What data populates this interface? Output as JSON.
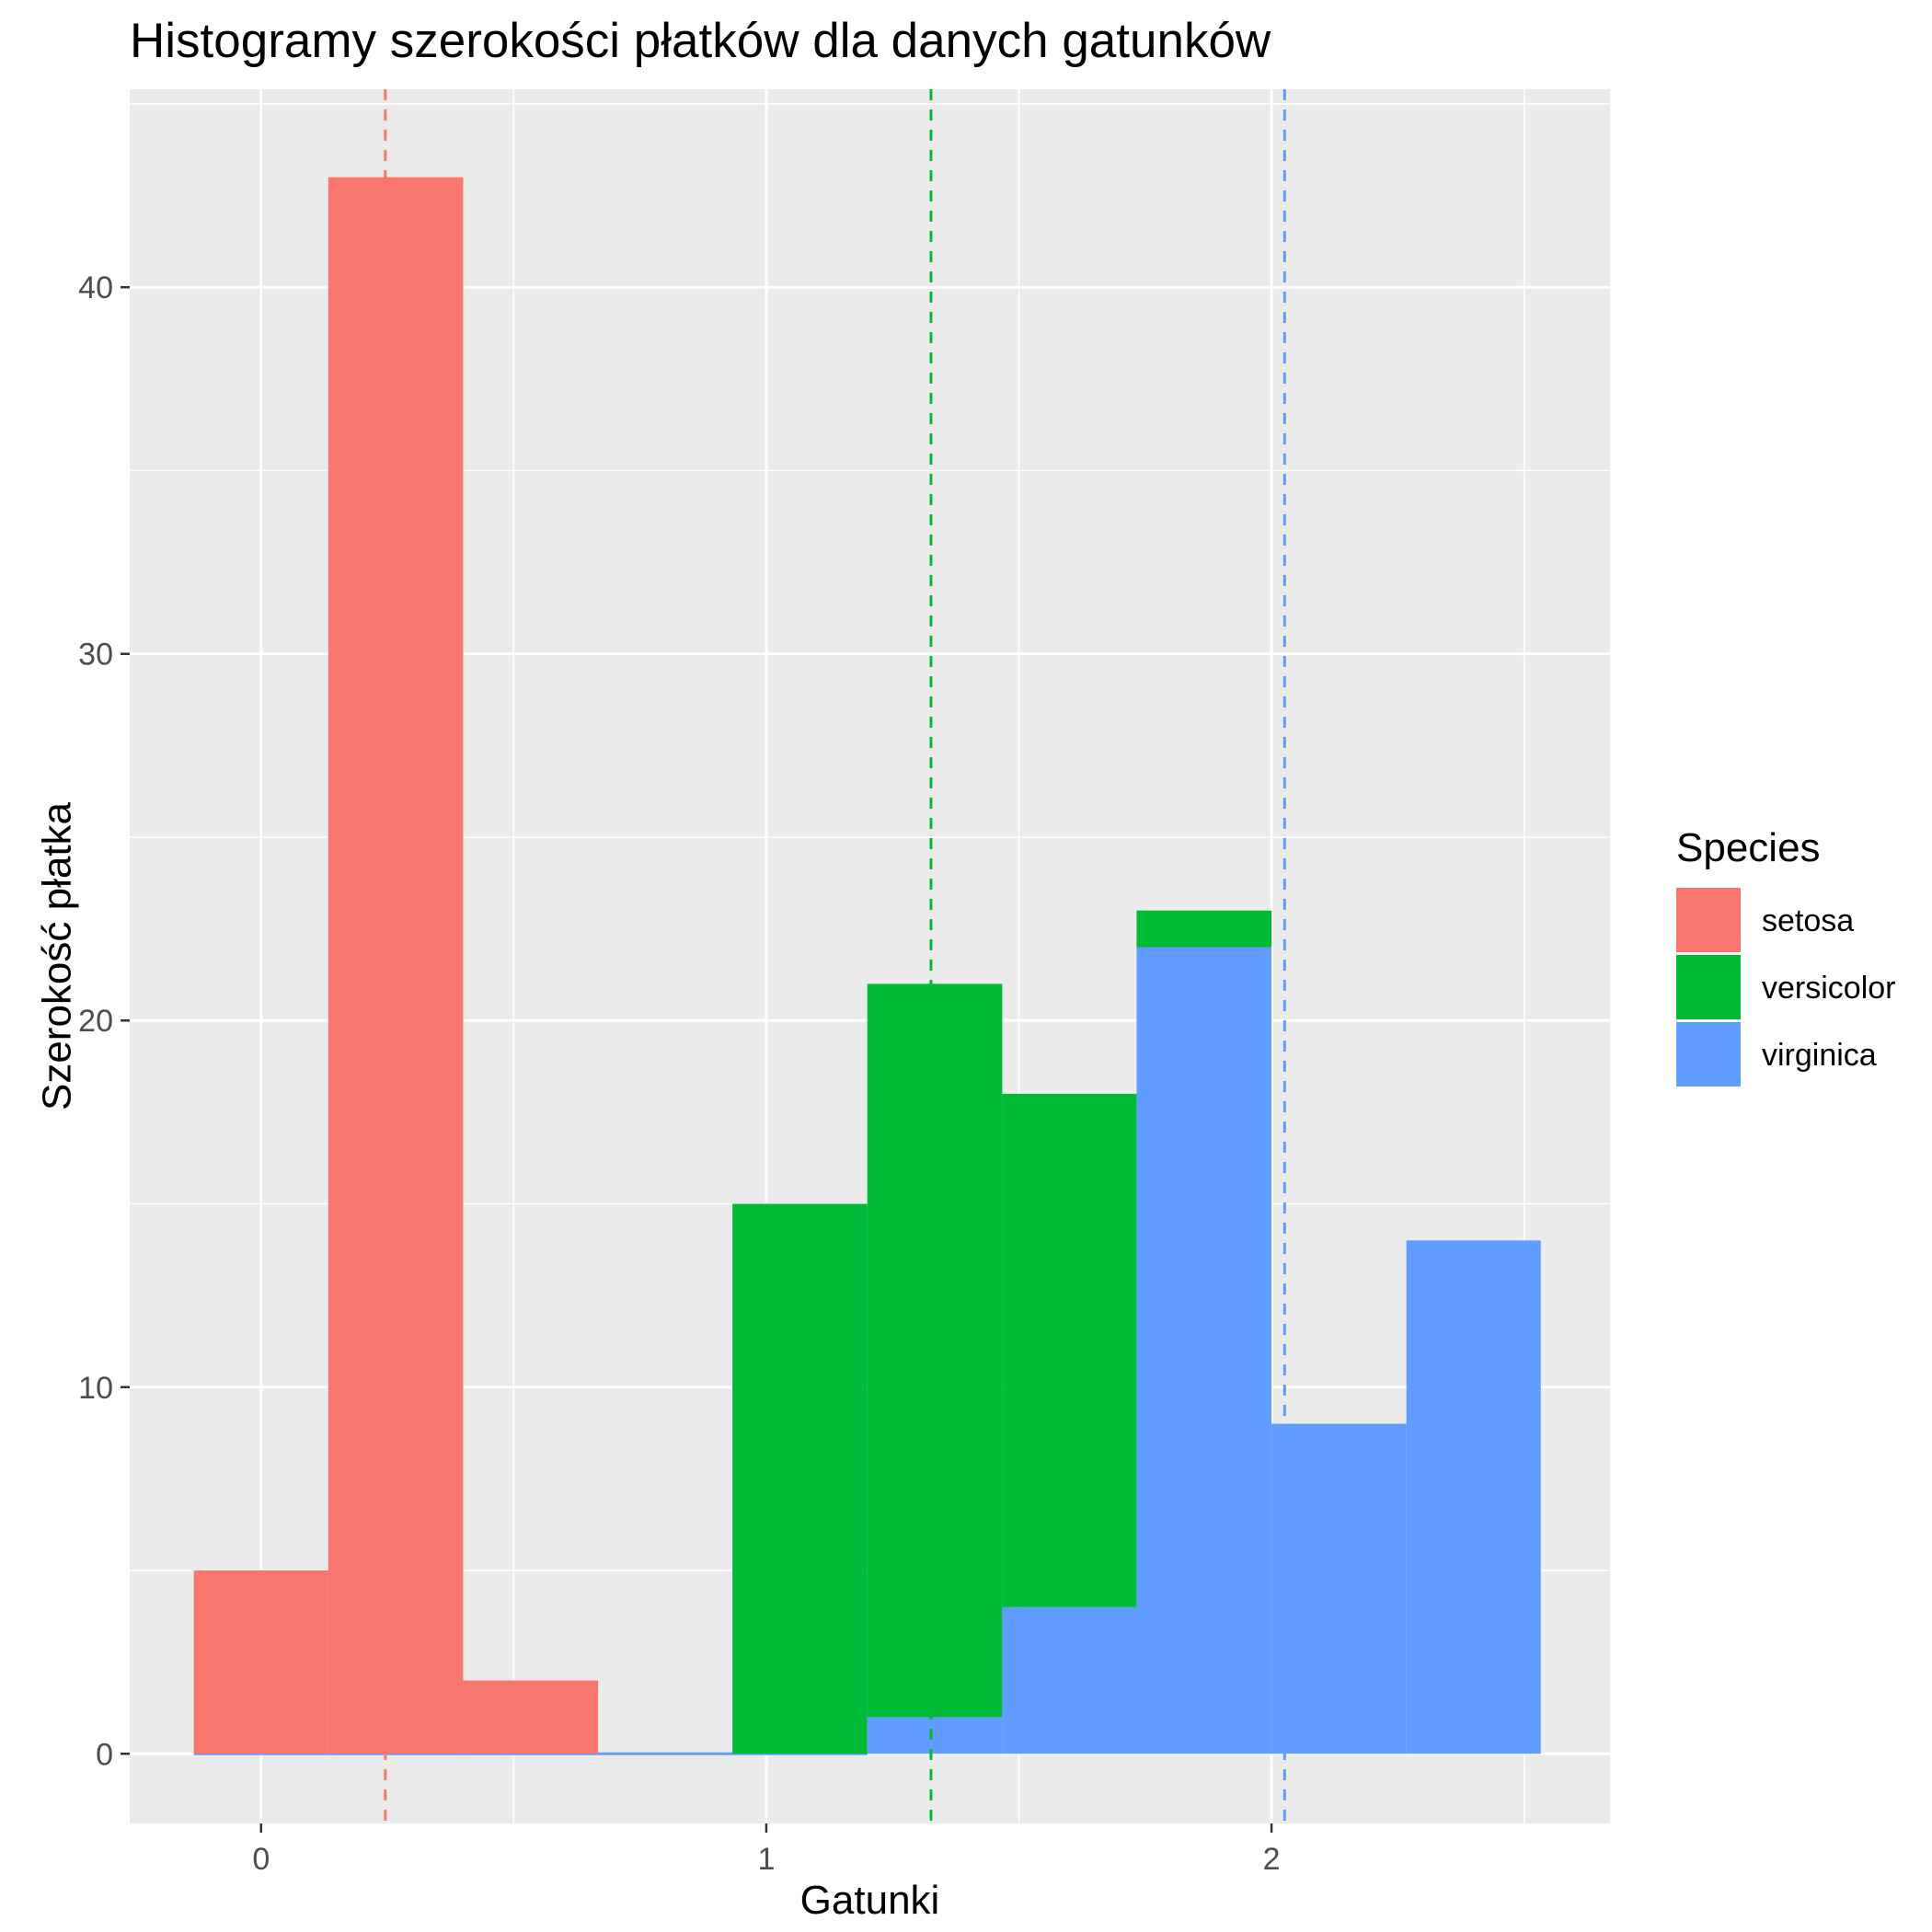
{
  "chart_data": {
    "type": "histogram",
    "title": "Histogramy szerokości płatków dla danych gatunków",
    "xlabel": "Gatunki",
    "ylabel": "Szerokość płatka",
    "xlim": [
      -0.26,
      2.67
    ],
    "ylim": [
      -1.9,
      45.4
    ],
    "x_ticks": [
      0,
      1,
      2
    ],
    "y_ticks": [
      0,
      10,
      20,
      30,
      40
    ],
    "position": "stack",
    "background": "#EBEBEB",
    "grid": true,
    "legend_title": "Species",
    "legend_position": "right",
    "bins": [
      {
        "x_min": -0.133,
        "x_max": 0.133
      },
      {
        "x_min": 0.133,
        "x_max": 0.4
      },
      {
        "x_min": 0.4,
        "x_max": 0.667
      },
      {
        "x_min": 0.667,
        "x_max": 0.933
      },
      {
        "x_min": 0.933,
        "x_max": 1.2
      },
      {
        "x_min": 1.2,
        "x_max": 1.467
      },
      {
        "x_min": 1.467,
        "x_max": 1.733
      },
      {
        "x_min": 1.733,
        "x_max": 2.0
      },
      {
        "x_min": 2.0,
        "x_max": 2.267
      },
      {
        "x_min": 2.267,
        "x_max": 2.533
      }
    ],
    "series": [
      {
        "name": "setosa",
        "color": "#F8766D",
        "values": [
          5,
          43,
          2,
          0,
          0,
          0,
          0,
          0,
          0,
          0
        ],
        "mean": 0.246
      },
      {
        "name": "versicolor",
        "color": "#00BA38",
        "values": [
          0,
          0,
          0,
          0,
          15,
          20,
          14,
          1,
          0,
          0
        ],
        "mean": 1.326
      },
      {
        "name": "virginica",
        "color": "#619CFF",
        "values": [
          0,
          0,
          0,
          0,
          0,
          1,
          4,
          22,
          9,
          14
        ],
        "mean": 2.026
      }
    ]
  }
}
